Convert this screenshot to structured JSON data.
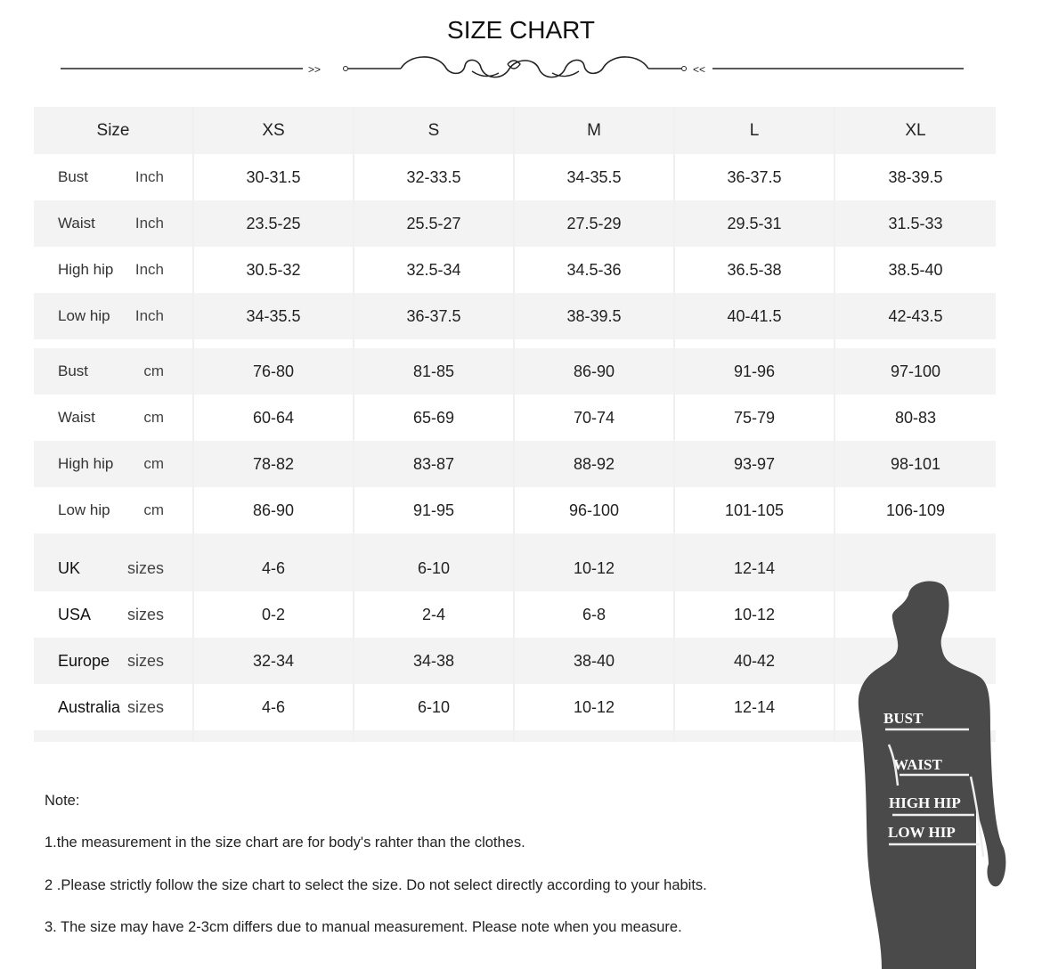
{
  "title": "SIZE CHART",
  "ornament": {
    "left_arrows": ">>",
    "right_arrows": "<<"
  },
  "table": {
    "header": [
      "Size",
      "XS",
      "S",
      "M",
      "L",
      "XL"
    ],
    "sections": [
      {
        "rows": [
          {
            "label": "Bust",
            "unit": "Inch",
            "values": [
              "30-31.5",
              "32-33.5",
              "34-35.5",
              "36-37.5",
              "38-39.5"
            ]
          },
          {
            "label": "Waist",
            "unit": "Inch",
            "values": [
              "23.5-25",
              "25.5-27",
              "27.5-29",
              "29.5-31",
              "31.5-33"
            ]
          },
          {
            "label": "High hip",
            "unit": "Inch",
            "values": [
              "30.5-32",
              "32.5-34",
              "34.5-36",
              "36.5-38",
              "38.5-40"
            ]
          },
          {
            "label": "Low hip",
            "unit": "Inch",
            "values": [
              "34-35.5",
              "36-37.5",
              "38-39.5",
              "40-41.5",
              "42-43.5"
            ]
          }
        ]
      },
      {
        "rows": [
          {
            "label": "Bust",
            "unit": "cm",
            "values": [
              "76-80",
              "81-85",
              "86-90",
              "91-96",
              "97-100"
            ]
          },
          {
            "label": "Waist",
            "unit": "cm",
            "values": [
              "60-64",
              "65-69",
              "70-74",
              "75-79",
              "80-83"
            ]
          },
          {
            "label": "High hip",
            "unit": "cm",
            "values": [
              "78-82",
              "83-87",
              "88-92",
              "93-97",
              "98-101"
            ]
          },
          {
            "label": "Low hip",
            "unit": "cm",
            "values": [
              "86-90",
              "91-95",
              "96-100",
              "101-105",
              "106-109"
            ]
          }
        ]
      },
      {
        "rows": [
          {
            "label": "UK",
            "unit": "sizes",
            "values": [
              "4-6",
              "6-10",
              "10-12",
              "12-14",
              ""
            ]
          },
          {
            "label": "USA",
            "unit": "sizes",
            "values": [
              "0-2",
              "2-4",
              "6-8",
              "10-12",
              ""
            ]
          },
          {
            "label": "Europe",
            "unit": "sizes",
            "values": [
              "32-34",
              "34-38",
              "38-40",
              "40-42",
              ""
            ]
          },
          {
            "label": "Australia",
            "unit": "sizes",
            "values": [
              "4-6",
              "6-10",
              "10-12",
              "12-14",
              ""
            ]
          }
        ]
      }
    ]
  },
  "notes": {
    "heading": "Note:",
    "items": [
      "1.the measurement in the size chart are for body's rahter than the clothes.",
      "2 .Please strictly follow the size chart  to select the size. Do not select directly according to your habits.",
      "3. The size may have 2-3cm differs due to manual measurement. Please note when you measure."
    ]
  },
  "figure": {
    "labels": [
      "BUST",
      "WAIST",
      "HIGH HIP",
      "LOW HIP"
    ],
    "color": "#4a4a4a"
  }
}
